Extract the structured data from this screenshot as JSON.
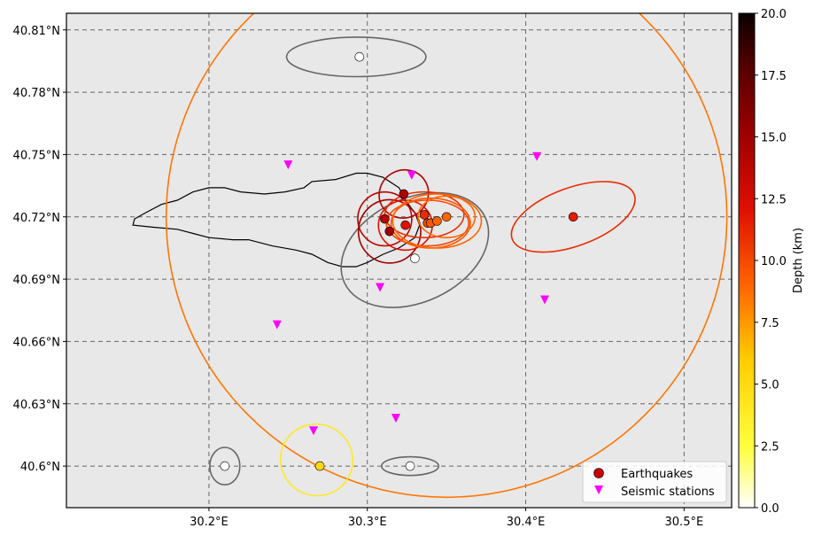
{
  "colors": {
    "plot_background": "#e8e8e8",
    "grid": "#666666",
    "coastline": "#000000",
    "station": "#ff00ff",
    "unlocated_ellipse": "#666666"
  },
  "colorbar": {
    "label": "Depth (km)",
    "min": 0,
    "max": 20,
    "ticks": [
      "0.0",
      "2.5",
      "5.0",
      "7.5",
      "10.0",
      "12.5",
      "15.0",
      "17.5",
      "20.0"
    ],
    "colormap": "hot_r"
  },
  "legend": {
    "placement": "lower-right",
    "items": [
      {
        "label": "Earthquakes",
        "marker": "circle"
      },
      {
        "label": "Seismic stations",
        "marker": "triangle-down"
      }
    ]
  },
  "chart_data": {
    "type": "scatter",
    "xlim": [
      30.11,
      30.53
    ],
    "ylim": [
      40.58,
      40.818
    ],
    "grid": true,
    "x_ticks": [
      {
        "value": 30.2,
        "label": "30.2°E"
      },
      {
        "value": 30.3,
        "label": "30.3°E"
      },
      {
        "value": 30.4,
        "label": "30.4°E"
      },
      {
        "value": 30.5,
        "label": "30.5°E"
      }
    ],
    "y_ticks": [
      {
        "value": 40.6,
        "label": "40.6°N"
      },
      {
        "value": 40.63,
        "label": "40.63°N"
      },
      {
        "value": 40.66,
        "label": "40.66°N"
      },
      {
        "value": 40.69,
        "label": "40.69°N"
      },
      {
        "value": 40.72,
        "label": "40.72°N"
      },
      {
        "value": 40.75,
        "label": "40.75°N"
      },
      {
        "value": 40.78,
        "label": "40.78°N"
      },
      {
        "value": 40.81,
        "label": "40.81°N"
      }
    ],
    "earthquakes": [
      {
        "lon": 30.323,
        "lat": 40.731,
        "depth": 14.5
      },
      {
        "lon": 30.311,
        "lat": 40.719,
        "depth": 14.0
      },
      {
        "lon": 30.314,
        "lat": 40.713,
        "depth": 15.0
      },
      {
        "lon": 30.324,
        "lat": 40.716,
        "depth": 12.0
      },
      {
        "lon": 30.336,
        "lat": 40.721,
        "depth": 11.0
      },
      {
        "lon": 30.338,
        "lat": 40.717,
        "depth": 10.0
      },
      {
        "lon": 30.34,
        "lat": 40.717,
        "depth": 9.5
      },
      {
        "lon": 30.344,
        "lat": 40.718,
        "depth": 9.0
      },
      {
        "lon": 30.35,
        "lat": 40.72,
        "depth": 9.0
      },
      {
        "lon": 30.43,
        "lat": 40.72,
        "depth": 11.5
      },
      {
        "lon": 30.27,
        "lat": 40.6,
        "depth": 5.0
      }
    ],
    "unlocated_events": [
      {
        "lon": 30.295,
        "lat": 40.797
      },
      {
        "lon": 30.33,
        "lat": 40.7
      },
      {
        "lon": 30.21,
        "lat": 40.6
      },
      {
        "lon": 30.327,
        "lat": 40.6
      }
    ],
    "error_ellipses": [
      {
        "lon": 30.35,
        "lat": 40.72,
        "a": 0.177,
        "b": 0.135,
        "angle": 0,
        "depth": 8.5
      },
      {
        "lon": 30.293,
        "lat": 40.797,
        "a": 0.044,
        "b": 0.0095,
        "angle": 0,
        "depth": null
      },
      {
        "lon": 30.33,
        "lat": 40.704,
        "a": 0.049,
        "b": 0.025,
        "angle": -25,
        "depth": null
      },
      {
        "lon": 30.21,
        "lat": 40.6,
        "a": 0.0095,
        "b": 0.009,
        "angle": 0,
        "depth": null
      },
      {
        "lon": 30.327,
        "lat": 40.6,
        "a": 0.018,
        "b": 0.0045,
        "angle": 0,
        "depth": null
      },
      {
        "lon": 30.268,
        "lat": 40.603,
        "a": 0.0225,
        "b": 0.0175,
        "angle": -60,
        "depth": 4.0
      },
      {
        "lon": 30.43,
        "lat": 40.72,
        "a": 0.041,
        "b": 0.014,
        "angle": -20,
        "depth": 11.0
      },
      {
        "lon": 30.323,
        "lat": 40.731,
        "a": 0.015,
        "b": 0.012,
        "angle": 60,
        "depth": 14.5
      },
      {
        "lon": 30.311,
        "lat": 40.719,
        "a": 0.017,
        "b": 0.013,
        "angle": 90,
        "depth": 14.0
      },
      {
        "lon": 30.314,
        "lat": 40.713,
        "a": 0.02,
        "b": 0.015,
        "angle": 90,
        "depth": 15.0
      },
      {
        "lon": 30.324,
        "lat": 40.716,
        "a": 0.017,
        "b": 0.012,
        "angle": 0,
        "depth": 12.0
      },
      {
        "lon": 30.336,
        "lat": 40.721,
        "a": 0.025,
        "b": 0.011,
        "angle": 0,
        "depth": 11.0
      },
      {
        "lon": 30.338,
        "lat": 40.717,
        "a": 0.026,
        "b": 0.011,
        "angle": 0,
        "depth": 10.0
      },
      {
        "lon": 30.34,
        "lat": 40.717,
        "a": 0.025,
        "b": 0.012,
        "angle": 0,
        "depth": 9.5
      },
      {
        "lon": 30.344,
        "lat": 40.718,
        "a": 0.028,
        "b": 0.013,
        "angle": 0,
        "depth": 9.0
      },
      {
        "lon": 30.35,
        "lat": 40.72,
        "a": 0.018,
        "b": 0.01,
        "angle": 0,
        "depth": 9.0
      }
    ],
    "seismic_stations": [
      {
        "lon": 30.25,
        "lat": 40.745
      },
      {
        "lon": 30.328,
        "lat": 40.74
      },
      {
        "lon": 30.407,
        "lat": 40.749
      },
      {
        "lon": 30.308,
        "lat": 40.686
      },
      {
        "lon": 30.412,
        "lat": 40.68
      },
      {
        "lon": 30.243,
        "lat": 40.668
      },
      {
        "lon": 30.318,
        "lat": 40.623
      },
      {
        "lon": 30.266,
        "lat": 40.617
      }
    ],
    "coastline": [
      [
        30.152,
        40.716
      ],
      [
        30.153,
        40.719
      ],
      [
        30.16,
        40.722
      ],
      [
        30.17,
        40.726
      ],
      [
        30.18,
        40.728
      ],
      [
        30.19,
        40.732
      ],
      [
        30.2,
        40.734
      ],
      [
        30.21,
        40.734
      ],
      [
        30.22,
        40.732
      ],
      [
        30.235,
        40.731
      ],
      [
        30.248,
        40.732
      ],
      [
        30.26,
        40.734
      ],
      [
        30.265,
        40.737
      ],
      [
        30.28,
        40.738
      ],
      [
        30.293,
        40.741
      ],
      [
        30.3,
        40.741
      ],
      [
        30.31,
        40.739
      ],
      [
        30.32,
        40.734
      ],
      [
        30.325,
        40.727
      ],
      [
        30.33,
        40.722
      ],
      [
        30.333,
        40.716
      ],
      [
        30.33,
        40.71
      ],
      [
        30.32,
        40.705
      ],
      [
        30.31,
        40.702
      ],
      [
        30.3,
        40.698
      ],
      [
        30.293,
        40.696
      ],
      [
        30.284,
        40.696
      ],
      [
        30.275,
        40.698
      ],
      [
        30.265,
        40.702
      ],
      [
        30.255,
        40.704
      ],
      [
        30.24,
        40.706
      ],
      [
        30.225,
        40.709
      ],
      [
        30.215,
        40.709
      ],
      [
        30.2,
        40.71
      ],
      [
        30.19,
        40.712
      ],
      [
        30.18,
        40.714
      ],
      [
        30.165,
        40.715
      ],
      [
        30.152,
        40.716
      ]
    ]
  }
}
